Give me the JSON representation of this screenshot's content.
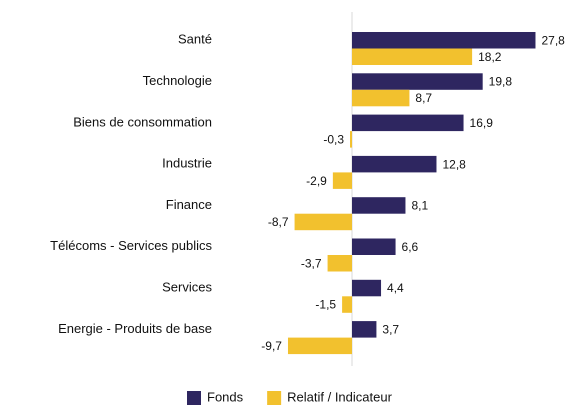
{
  "chart_data": {
    "type": "bar",
    "orientation": "horizontal",
    "categories": [
      "Santé",
      "Technologie",
      "Biens de consommation",
      "Industrie",
      "Finance",
      "Télécoms - Services publics",
      "Services",
      "Energie - Produits de base"
    ],
    "series": [
      {
        "name": "Fonds",
        "color": "#2e2660",
        "values": [
          27.8,
          19.8,
          16.9,
          12.8,
          8.1,
          6.6,
          4.4,
          3.7
        ],
        "value_labels": [
          "27,8",
          "19,8",
          "16,9",
          "12,8",
          "8,1",
          "6,6",
          "4,4",
          "3,7"
        ]
      },
      {
        "name": "Relatif / Indicateur",
        "color": "#f2c12e",
        "values": [
          18.2,
          8.7,
          -0.3,
          -2.9,
          -8.7,
          -3.7,
          -1.5,
          -9.7
        ],
        "value_labels": [
          "18,2",
          "8,7",
          "-0,3",
          "-2,9",
          "-8,7",
          "-3,7",
          "-1,5",
          "-9,7"
        ]
      }
    ],
    "legend": "bottom"
  }
}
